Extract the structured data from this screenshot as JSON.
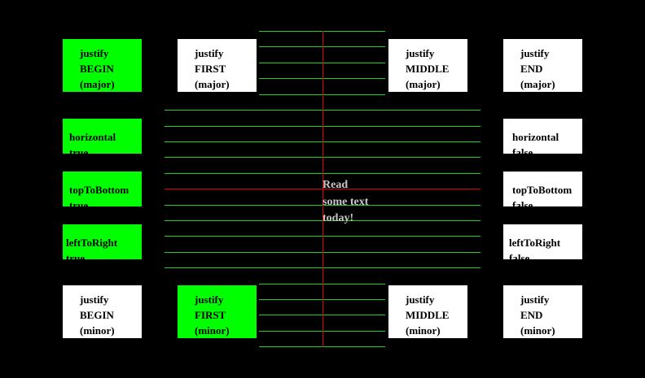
{
  "justify_top": [
    {
      "lines": [
        "justify",
        "BEGIN",
        "(major)"
      ],
      "color": "#00ff00"
    },
    {
      "lines": [
        "justify",
        "FIRST",
        "(major)"
      ],
      "color": "#ffffff"
    },
    {
      "lines": [
        "justify",
        "MIDDLE",
        "(major)"
      ],
      "color": "#ffffff"
    },
    {
      "lines": [
        "justify",
        "END",
        "(major)"
      ],
      "color": "#ffffff"
    }
  ],
  "justify_bottom": [
    {
      "lines": [
        "justify",
        "BEGIN",
        "(minor)"
      ],
      "color": "#ffffff"
    },
    {
      "lines": [
        "justify",
        "FIRST",
        "(minor)"
      ],
      "color": "#00ff00"
    },
    {
      "lines": [
        "justify",
        "MIDDLE",
        "(minor)"
      ],
      "color": "#ffffff"
    },
    {
      "lines": [
        "justify",
        "END",
        "(minor)"
      ],
      "color": "#ffffff"
    }
  ],
  "left_flags": [
    {
      "lines": [
        "horizontal",
        "true"
      ],
      "color": "#00ff00"
    },
    {
      "lines": [
        "topToBottom",
        "true"
      ],
      "color": "#00ff00"
    },
    {
      "lines": [
        "leftToRight",
        "true"
      ],
      "color": "#00ff00"
    }
  ],
  "right_flags": [
    {
      "lines": [
        "horizontal",
        "false"
      ],
      "color": "#ffffff"
    },
    {
      "lines": [
        "topToBottom",
        "false"
      ],
      "color": "#ffffff"
    },
    {
      "lines": [
        "leftToRight",
        "false"
      ],
      "color": "#ffffff"
    }
  ],
  "sample_text": [
    "Read",
    "some text",
    "today!"
  ],
  "colors": {
    "guide": "#1fcf1f",
    "baseline": "#e00000",
    "highlight": "#00ff00"
  }
}
